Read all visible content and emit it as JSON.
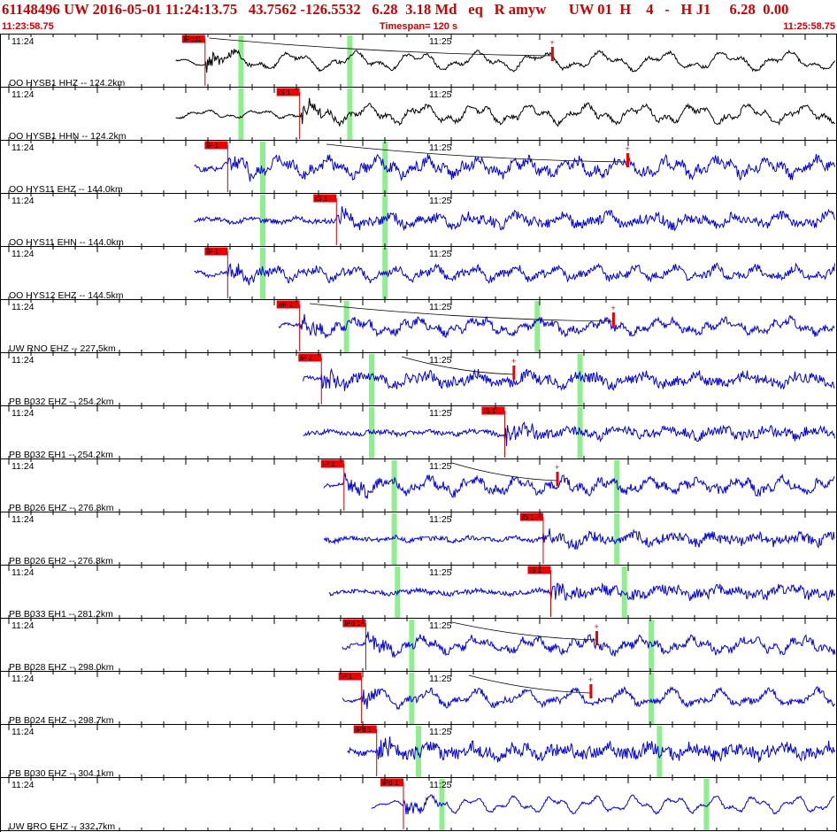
{
  "header": {
    "title": "61148496 UW 2016-05-01 11:24:13.75   43.7562 -126.5532   6.28  3.18 Md   eq   R amyw      UW 01  H    4   -   H J1     6.28  0.00",
    "time_start": "11:23:58.75",
    "time_end": "11:25:58.75",
    "timespan": "Timespan= 120 s"
  },
  "colors": {
    "background": "#ffffff",
    "title_text": "#cc0000",
    "pick_box": "#ee0000",
    "pick_line": "#cc0000",
    "window_green": "#90ee90",
    "trace_broadband": "#000000",
    "trace_short_period": "#0000dd",
    "grid": "#000000"
  },
  "axis": {
    "tick_label_1": "11:24",
    "tick_label_2": "11:25"
  },
  "traces": [
    {
      "station": "OO HYSB1 HHZ -- 124.2km",
      "pick": "iPcd1",
      "color": "#000000",
      "start": 0.21,
      "pick_pos": 0.245,
      "greens": [
        0.288,
        0.418
      ],
      "marker": 0.66,
      "amp": 1.0,
      "noise": 0.25,
      "curve": [
        0.25,
        0.66,
        0.04
      ]
    },
    {
      "station": "OO HYSB1 HHN -- 124.2km",
      "pick": "iS 1",
      "color": "#000000",
      "start": 0.21,
      "pick_pos": 0.358,
      "greens": [
        0.288,
        0.418
      ],
      "marker": null,
      "amp": 1.0,
      "noise": 0.35,
      "curve": null
    },
    {
      "station": "OO HYS11 EHZ -- 144.0km",
      "pick": "iP 1",
      "color": "#0000dd",
      "start": 0.232,
      "pick_pos": 0.272,
      "greens": [
        0.314,
        0.46
      ],
      "marker": 0.75,
      "amp": 0.9,
      "noise": 0.8,
      "curve": [
        0.39,
        0.75,
        0.05
      ]
    },
    {
      "station": "OO HYS11 EHN -- 144.0km",
      "pick": "iS 1",
      "color": "#0000dd",
      "start": 0.232,
      "pick_pos": 0.402,
      "greens": [
        0.314,
        0.46
      ],
      "marker": null,
      "amp": 0.6,
      "noise": 0.8,
      "curve": null
    },
    {
      "station": "OO HYS12 EHZ -- 144.5km",
      "pick": "iP 1",
      "color": "#0000dd",
      "start": 0.232,
      "pick_pos": 0.272,
      "greens": [
        0.314,
        0.46
      ],
      "marker": null,
      "amp": 0.7,
      "noise": 0.6,
      "curve": null
    },
    {
      "station": "UW RNO EHZ -- 227.5km",
      "pick": "eP 2",
      "color": "#0000dd",
      "start": 0.333,
      "pick_pos": 0.358,
      "greens": [
        0.414,
        0.642
      ],
      "marker": 0.733,
      "amp": 0.8,
      "noise": 0.6,
      "curve": [
        0.37,
        0.733,
        0.04
      ]
    },
    {
      "station": "PB B032 EHZ -- 254.2km",
      "pick": "iP 2",
      "color": "#0000dd",
      "start": 0.362,
      "pick_pos": 0.384,
      "greens": [
        0.444,
        0.693
      ],
      "marker": 0.614,
      "amp": 0.6,
      "noise": 0.8,
      "curve": [
        0.48,
        0.614,
        0.04
      ]
    },
    {
      "station": "PB B032 EH1 -- 254.2km",
      "pick": "iS 1",
      "color": "#0000dd",
      "start": 0.362,
      "pick_pos": 0.603,
      "greens": [
        0.444,
        0.693
      ],
      "marker": null,
      "amp": 0.45,
      "noise": 0.8,
      "curve": null
    },
    {
      "station": "PB B026 EHZ -- 276.8km",
      "pick": "iP 1",
      "color": "#0000dd",
      "start": 0.387,
      "pick_pos": 0.411,
      "greens": [
        0.471,
        0.737
      ],
      "marker": 0.666,
      "amp": 0.8,
      "noise": 0.7,
      "curve": [
        0.54,
        0.666,
        0.04
      ]
    },
    {
      "station": "PB B026 EH2 -- 276.8km",
      "pick": "iS 1",
      "color": "#0000dd",
      "start": 0.387,
      "pick_pos": 0.649,
      "greens": [
        0.471,
        0.737
      ],
      "marker": null,
      "amp": 0.45,
      "noise": 0.8,
      "curve": null
    },
    {
      "station": "PB B033 EH1 -- 281.2km",
      "pick": "iS 1",
      "color": "#0000dd",
      "start": 0.393,
      "pick_pos": 0.658,
      "greens": [
        0.475,
        0.746
      ],
      "marker": null,
      "amp": 0.5,
      "noise": 0.8,
      "curve": null
    },
    {
      "station": "PB B028 EHZ -- 298.0km",
      "pick": "iPd 1",
      "color": "#0000dd",
      "start": 0.409,
      "pick_pos": 0.437,
      "greens": [
        0.492,
        0.778
      ],
      "marker": 0.713,
      "amp": 0.8,
      "noise": 0.6,
      "curve": [
        0.54,
        0.713,
        0.04
      ]
    },
    {
      "station": "PB B024 EHZ -- 298.7km",
      "pick": "iP 1",
      "color": "#0000dd",
      "start": 0.409,
      "pick_pos": 0.432,
      "greens": [
        0.492,
        0.778
      ],
      "marker": 0.706,
      "amp": 0.9,
      "noise": 0.5,
      "curve": [
        0.56,
        0.706,
        0.04
      ]
    },
    {
      "station": "PB B030 EHZ -- 304.1km",
      "pick": "iPd 1",
      "color": "#0000dd",
      "start": 0.415,
      "pick_pos": 0.45,
      "greens": [
        0.5,
        0.788
      ],
      "marker": null,
      "amp": 0.55,
      "noise": 1.0,
      "curve": null
    },
    {
      "station": "UW BRO EHZ -- 332.7km",
      "pick": "iPd 1",
      "color": "#0000dd",
      "start": 0.444,
      "pick_pos": 0.482,
      "greens": [
        0.528,
        0.844
      ],
      "marker": null,
      "amp": 0.9,
      "noise": 0.2,
      "curve": null
    }
  ]
}
